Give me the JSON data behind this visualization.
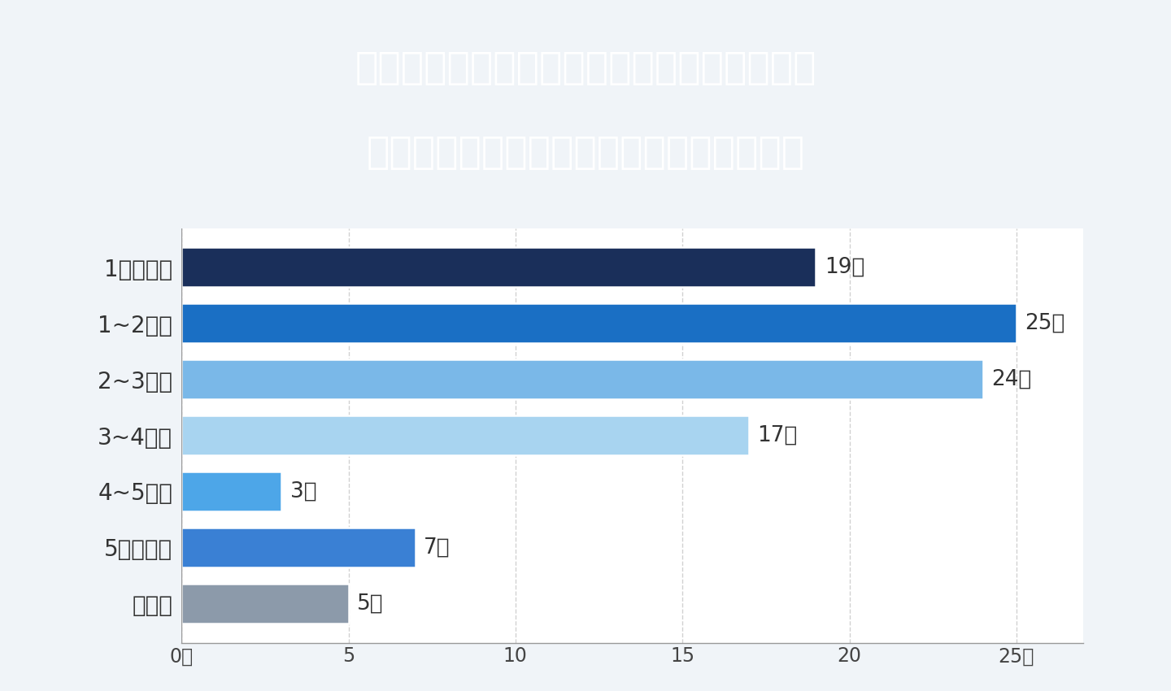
{
  "title_line1": "「借金返済の工夫でおおよそ月どれくらいの",
  "title_line2": "節約効果があった？」についての回答結果",
  "title_bg": "#1e3a6e",
  "title_color": "#ffffff",
  "chart_bg": "#f0f4f8",
  "plot_bg": "#ffffff",
  "categories": [
    "1万円以下",
    "1~2万円",
    "2~3万円",
    "3~4万円",
    "4~5万円",
    "5万円以上",
    "その他"
  ],
  "values": [
    19,
    25,
    24,
    17,
    3,
    7,
    5
  ],
  "bar_colors": [
    "#1a2f5a",
    "#1a6fc4",
    "#7ab8e8",
    "#a8d4f0",
    "#4da6e8",
    "#3a80d4",
    "#8c9aaa"
  ],
  "value_labels": [
    "19人",
    "25人",
    "24人",
    "17人",
    "3人",
    "7人",
    "5人"
  ],
  "xlim": [
    0,
    27
  ],
  "xticks": [
    0,
    5,
    10,
    15,
    20,
    25
  ],
  "xtick_labels": [
    "0人",
    "5",
    "10",
    "15",
    "20",
    "25人"
  ],
  "grid_color": "#cccccc",
  "label_fontsize": 20,
  "value_fontsize": 19,
  "tick_fontsize": 17,
  "title_fontsize": 34
}
